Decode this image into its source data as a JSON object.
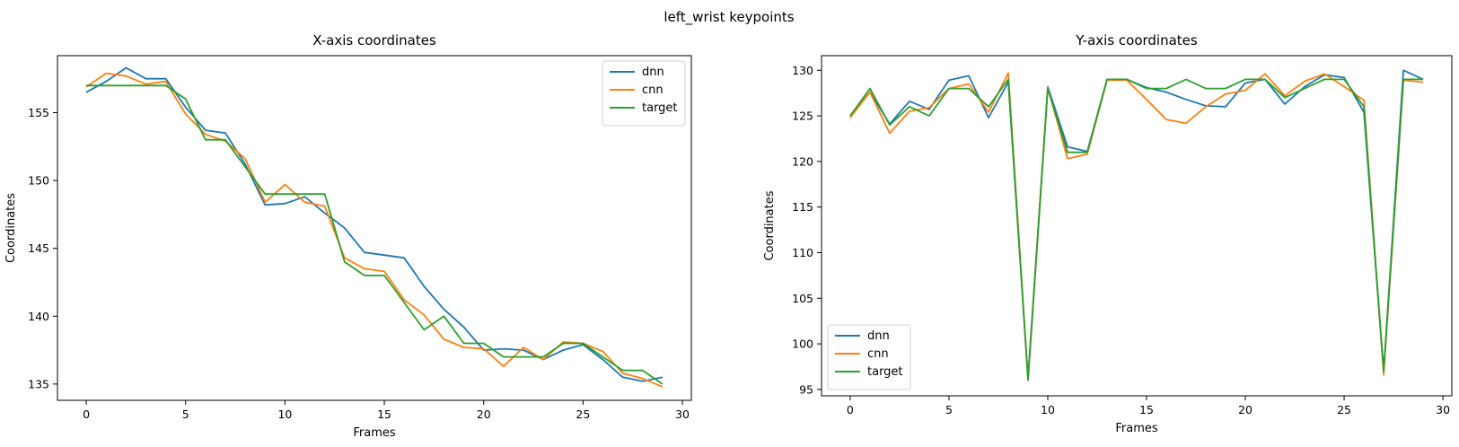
{
  "figure_title": "left_wrist keypoints",
  "colors": {
    "dnn": "#1f77b4",
    "cnn": "#ff7f0e",
    "target": "#2ca02c"
  },
  "chart_data": [
    {
      "type": "line",
      "title": "X-axis coordinates",
      "xlabel": "Frames",
      "ylabel": "Coordinates",
      "xlim": [
        -1.45,
        30.45
      ],
      "ylim": [
        133.8,
        159.2
      ],
      "xticks": [
        0,
        5,
        10,
        15,
        20,
        25,
        30
      ],
      "yticks": [
        135,
        140,
        145,
        150,
        155
      ],
      "legend_position": "upper right",
      "x": [
        0,
        1,
        2,
        3,
        4,
        5,
        6,
        7,
        8,
        9,
        10,
        11,
        12,
        13,
        14,
        15,
        16,
        17,
        18,
        19,
        20,
        21,
        22,
        23,
        24,
        25,
        26,
        27,
        28,
        29
      ],
      "series": [
        {
          "name": "dnn",
          "values": [
            156.5,
            157.3,
            158.3,
            157.5,
            157.5,
            155.4,
            153.7,
            153.5,
            151.2,
            148.2,
            148.3,
            148.8,
            147.6,
            146.5,
            144.7,
            144.5,
            144.3,
            142.2,
            140.5,
            139.2,
            137.5,
            137.6,
            137.5,
            136.8,
            137.5,
            137.9,
            136.8,
            135.5,
            135.2,
            135.5
          ]
        },
        {
          "name": "cnn",
          "values": [
            156.9,
            157.9,
            157.7,
            157.1,
            157.3,
            154.9,
            153.4,
            152.9,
            151.6,
            148.4,
            149.7,
            148.4,
            148.1,
            144.3,
            143.5,
            143.3,
            141.2,
            140.1,
            138.3,
            137.7,
            137.6,
            136.3,
            137.7,
            136.8,
            138.1,
            138.0,
            137.4,
            135.8,
            135.4,
            134.8
          ]
        },
        {
          "name": "target",
          "values": [
            157,
            157,
            157,
            157,
            157,
            156,
            153,
            153,
            151,
            149,
            149,
            149,
            149,
            144,
            143,
            143,
            141,
            139,
            140,
            138,
            138,
            137,
            137,
            137,
            138,
            138,
            137,
            136,
            136,
            135
          ]
        }
      ]
    },
    {
      "type": "line",
      "title": "Y-axis coordinates",
      "xlabel": "Frames",
      "ylabel": "Coordinates",
      "xlim": [
        -1.45,
        30.45
      ],
      "ylim": [
        94.3,
        131.6
      ],
      "xticks": [
        0,
        5,
        10,
        15,
        20,
        25,
        30
      ],
      "yticks": [
        95,
        100,
        105,
        110,
        115,
        120,
        125,
        130
      ],
      "legend_position": "lower left",
      "x": [
        0,
        1,
        2,
        3,
        4,
        5,
        6,
        7,
        8,
        9,
        10,
        11,
        12,
        13,
        14,
        15,
        16,
        17,
        18,
        19,
        20,
        21,
        22,
        23,
        24,
        25,
        26,
        27,
        28,
        29
      ],
      "series": [
        {
          "name": "dnn",
          "values": [
            125.0,
            127.6,
            124.1,
            126.6,
            125.7,
            128.9,
            129.4,
            124.8,
            128.7,
            96.3,
            128.2,
            121.6,
            121.1,
            129.0,
            129.0,
            128.1,
            127.6,
            126.8,
            126.1,
            126.0,
            128.6,
            129.0,
            126.3,
            128.2,
            129.5,
            129.2,
            125.4,
            97.0,
            130.0,
            129.0
          ]
        },
        {
          "name": "cnn",
          "values": [
            124.8,
            127.6,
            123.1,
            125.5,
            125.9,
            128.0,
            128.5,
            125.4,
            129.7,
            96.1,
            128.1,
            120.3,
            120.8,
            128.9,
            128.9,
            126.8,
            124.6,
            124.2,
            126.0,
            127.4,
            127.8,
            129.6,
            127.2,
            128.8,
            129.6,
            128.2,
            126.7,
            96.6,
            128.9,
            128.7
          ]
        },
        {
          "name": "target",
          "values": [
            125,
            128,
            124,
            126,
            125,
            128,
            128,
            126,
            129,
            96,
            128,
            121,
            121,
            129,
            129,
            128,
            128,
            129,
            128,
            128,
            129,
            129,
            127,
            128,
            129,
            129,
            126,
            97,
            129,
            129
          ]
        }
      ]
    }
  ]
}
